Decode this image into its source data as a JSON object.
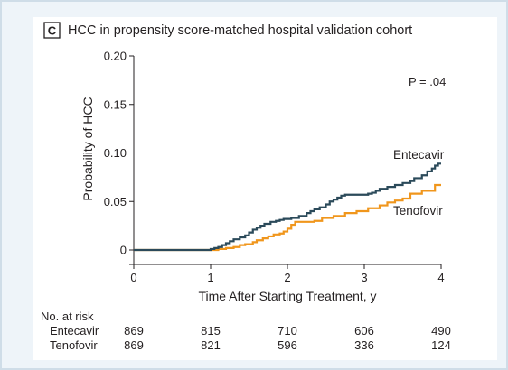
{
  "panel": {
    "letter": "C",
    "title": "HCC in propensity score-matched hospital validation cohort"
  },
  "colors": {
    "entecavir": "#2b4a5a",
    "tenofovir": "#f0961c",
    "axis": "#231f20",
    "frame_border": "#cfdde8",
    "frame_fill": "#eef4f9"
  },
  "chart_data": {
    "type": "line",
    "title": "HCC in propensity score-matched hospital validation cohort",
    "xlabel": "Time After Starting Treatment, y",
    "ylabel": "Probability of HCC",
    "xlim": [
      0,
      4
    ],
    "ylim": [
      0,
      0.2
    ],
    "x_ticks": [
      "0",
      "1",
      "2",
      "3",
      "4"
    ],
    "y_ticks": [
      "0",
      "0.05",
      "0.10",
      "0.15",
      "0.20"
    ],
    "annotation": "P = .04",
    "grid": false,
    "step": true,
    "series": [
      {
        "name": "Entecavir",
        "points": [
          [
            0,
            0
          ],
          [
            1.0,
            0
          ],
          [
            1.0,
            0.001
          ],
          [
            1.05,
            0.002
          ],
          [
            1.1,
            0.003
          ],
          [
            1.15,
            0.005
          ],
          [
            1.2,
            0.007
          ],
          [
            1.25,
            0.009
          ],
          [
            1.3,
            0.011
          ],
          [
            1.38,
            0.013
          ],
          [
            1.45,
            0.015
          ],
          [
            1.5,
            0.018
          ],
          [
            1.55,
            0.021
          ],
          [
            1.6,
            0.023
          ],
          [
            1.65,
            0.025
          ],
          [
            1.7,
            0.027
          ],
          [
            1.78,
            0.029
          ],
          [
            1.85,
            0.03
          ],
          [
            1.9,
            0.031
          ],
          [
            1.95,
            0.032
          ],
          [
            2.05,
            0.033
          ],
          [
            2.15,
            0.035
          ],
          [
            2.25,
            0.038
          ],
          [
            2.3,
            0.04
          ],
          [
            2.35,
            0.042
          ],
          [
            2.42,
            0.044
          ],
          [
            2.5,
            0.047
          ],
          [
            2.55,
            0.05
          ],
          [
            2.6,
            0.052
          ],
          [
            2.65,
            0.054
          ],
          [
            2.7,
            0.056
          ],
          [
            2.75,
            0.057
          ],
          [
            3.05,
            0.058
          ],
          [
            3.1,
            0.059
          ],
          [
            3.15,
            0.061
          ],
          [
            3.2,
            0.063
          ],
          [
            3.3,
            0.065
          ],
          [
            3.4,
            0.067
          ],
          [
            3.5,
            0.069
          ],
          [
            3.6,
            0.071
          ],
          [
            3.65,
            0.074
          ],
          [
            3.75,
            0.077
          ],
          [
            3.82,
            0.081
          ],
          [
            3.88,
            0.084
          ],
          [
            3.92,
            0.087
          ],
          [
            3.96,
            0.089
          ],
          [
            4.0,
            0.089
          ]
        ]
      },
      {
        "name": "Tenofovir",
        "points": [
          [
            0,
            0
          ],
          [
            1.1,
            0
          ],
          [
            1.1,
            0.001
          ],
          [
            1.2,
            0.002
          ],
          [
            1.3,
            0.003
          ],
          [
            1.38,
            0.005
          ],
          [
            1.45,
            0.006
          ],
          [
            1.55,
            0.008
          ],
          [
            1.6,
            0.01
          ],
          [
            1.68,
            0.012
          ],
          [
            1.75,
            0.014
          ],
          [
            1.82,
            0.016
          ],
          [
            1.9,
            0.017
          ],
          [
            1.95,
            0.019
          ],
          [
            2.0,
            0.022
          ],
          [
            2.05,
            0.026
          ],
          [
            2.1,
            0.029
          ],
          [
            2.35,
            0.03
          ],
          [
            2.45,
            0.033
          ],
          [
            2.6,
            0.035
          ],
          [
            2.75,
            0.038
          ],
          [
            2.9,
            0.04
          ],
          [
            3.05,
            0.043
          ],
          [
            3.2,
            0.046
          ],
          [
            3.3,
            0.049
          ],
          [
            3.4,
            0.051
          ],
          [
            3.5,
            0.053
          ],
          [
            3.6,
            0.058
          ],
          [
            3.75,
            0.061
          ],
          [
            3.92,
            0.067
          ],
          [
            4.0,
            0.067
          ]
        ]
      }
    ]
  },
  "risk_table": {
    "heading": "No. at risk",
    "rows": [
      {
        "label": "Entecavir",
        "values": [
          "869",
          "815",
          "710",
          "606",
          "490"
        ]
      },
      {
        "label": "Tenofovir",
        "values": [
          "869",
          "821",
          "596",
          "336",
          "124"
        ]
      }
    ]
  }
}
